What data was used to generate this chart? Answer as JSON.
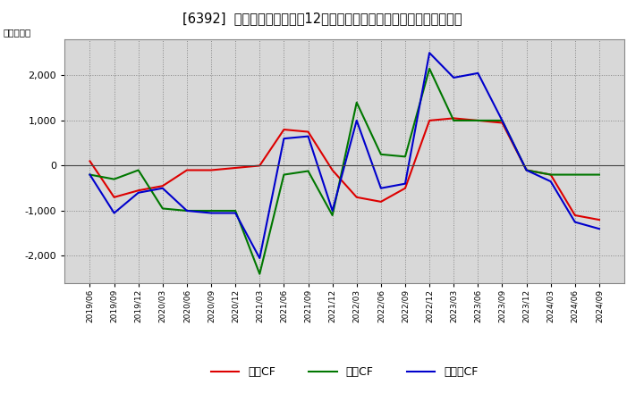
{
  "title": "[6392]  キャッシュフローの12か月移動合計の対前年同期増減額の推移",
  "ylabel": "（百万円）",
  "background_color": "#ffffff",
  "plot_bg_color": "#d8d8d8",
  "x_labels": [
    "2019/06",
    "2019/09",
    "2019/12",
    "2020/03",
    "2020/06",
    "2020/09",
    "2020/12",
    "2021/03",
    "2021/06",
    "2021/09",
    "2021/12",
    "2022/03",
    "2022/06",
    "2022/09",
    "2022/12",
    "2023/03",
    "2023/06",
    "2023/09",
    "2023/12",
    "2024/03",
    "2024/06",
    "2024/09"
  ],
  "eigyo_cf": [
    100,
    -700,
    -550,
    -450,
    -100,
    -100,
    -50,
    0,
    800,
    750,
    -100,
    -700,
    -800,
    -500,
    1000,
    1050,
    1000,
    950,
    -100,
    -200,
    -1100,
    -1200
  ],
  "toshi_cf": [
    -200,
    -300,
    -100,
    -950,
    -1000,
    -1000,
    -1000,
    -2400,
    -200,
    -120,
    -1100,
    1400,
    250,
    200,
    2150,
    1000,
    1000,
    1000,
    -100,
    -200,
    -200,
    -200
  ],
  "free_cf": [
    -200,
    -1050,
    -600,
    -500,
    -1000,
    -1050,
    -1050,
    -2050,
    600,
    650,
    -1000,
    1000,
    -500,
    -400,
    2500,
    1950,
    2050,
    1000,
    -100,
    -350,
    -1250,
    -1400
  ],
  "colors": {
    "eigyo": "#dd0000",
    "toshi": "#007700",
    "free": "#0000cc"
  },
  "ylim": [
    -2600,
    2800
  ],
  "yticks": [
    -2000,
    -1000,
    0,
    1000,
    2000
  ],
  "legend_labels": [
    "営業CF",
    "投資CF",
    "フリーCF"
  ]
}
